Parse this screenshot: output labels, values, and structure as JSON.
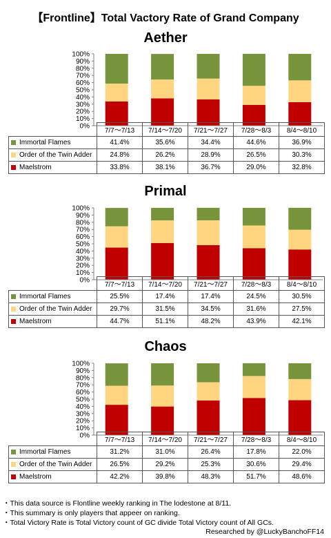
{
  "header": {
    "title": "【Frontline】Total Vactory Rate of Grand Company"
  },
  "legend_labels": [
    "Immortal Flames",
    "Order of the Twin Adder",
    "Maelstrom"
  ],
  "colors": {
    "immortal_flames": "#77933C",
    "twin_adder": "#FFD57F",
    "maelstrom": "#C00000",
    "axis": "#808080"
  },
  "chart_data": [
    {
      "type": "bar",
      "stacked": true,
      "title": "Aether",
      "categories": [
        "7/7～7/13",
        "7/14～7/20",
        "7/21～7/27",
        "7/28～8/3",
        "8/4～8/10"
      ],
      "ylim": [
        0,
        100
      ],
      "yticks": [
        "0%",
        "10%",
        "20%",
        "30%",
        "40%",
        "50%",
        "60%",
        "70%",
        "80%",
        "90%",
        "100%"
      ],
      "series": [
        {
          "name": "Immortal Flames",
          "values": [
            41.4,
            35.6,
            34.4,
            44.6,
            36.9
          ],
          "labels": [
            "41.4%",
            "35.6%",
            "34.4%",
            "44.6%",
            "36.9%"
          ]
        },
        {
          "name": "Order of the Twin Adder",
          "values": [
            24.8,
            26.2,
            28.9,
            26.5,
            30.3
          ],
          "labels": [
            "24.8%",
            "26.2%",
            "28.9%",
            "26.5%",
            "30.3%"
          ]
        },
        {
          "name": "Maelstrom",
          "values": [
            33.8,
            38.1,
            36.7,
            29.0,
            32.8
          ],
          "labels": [
            "33.8%",
            "38.1%",
            "36.7%",
            "29.0%",
            "32.8%"
          ]
        }
      ]
    },
    {
      "type": "bar",
      "stacked": true,
      "title": "Primal",
      "categories": [
        "7/7～7/13",
        "7/14～7/20",
        "7/21～7/27",
        "7/28～8/3",
        "8/4～8/10"
      ],
      "ylim": [
        0,
        100
      ],
      "yticks": [
        "0%",
        "10%",
        "20%",
        "30%",
        "40%",
        "50%",
        "60%",
        "70%",
        "80%",
        "90%",
        "100%"
      ],
      "series": [
        {
          "name": "Immortal Flames",
          "values": [
            25.5,
            17.4,
            17.4,
            24.5,
            30.5
          ],
          "labels": [
            "25.5%",
            "17.4%",
            "17.4%",
            "24.5%",
            "30.5%"
          ]
        },
        {
          "name": "Order of the Twin Adder",
          "values": [
            29.7,
            31.5,
            34.5,
            31.6,
            27.5
          ],
          "labels": [
            "29.7%",
            "31.5%",
            "34.5%",
            "31.6%",
            "27.5%"
          ]
        },
        {
          "name": "Maelstrom",
          "values": [
            44.7,
            51.1,
            48.2,
            43.9,
            42.1
          ],
          "labels": [
            "44.7%",
            "51.1%",
            "48.2%",
            "43.9%",
            "42.1%"
          ]
        }
      ]
    },
    {
      "type": "bar",
      "stacked": true,
      "title": "Chaos",
      "categories": [
        "7/7～7/13",
        "7/14～7/20",
        "7/21～7/27",
        "7/28～8/3",
        "8/4～8/10"
      ],
      "ylim": [
        0,
        100
      ],
      "yticks": [
        "0%",
        "10%",
        "20%",
        "30%",
        "40%",
        "50%",
        "60%",
        "70%",
        "80%",
        "90%",
        "100%"
      ],
      "series": [
        {
          "name": "Immortal Flames",
          "values": [
            31.2,
            31.0,
            26.4,
            17.8,
            22.0
          ],
          "labels": [
            "31.2%",
            "31.0%",
            "26.4%",
            "17.8%",
            "22.0%"
          ]
        },
        {
          "name": "Order of the Twin Adder",
          "values": [
            26.5,
            29.2,
            25.3,
            30.6,
            29.4
          ],
          "labels": [
            "26.5%",
            "29.2%",
            "25.3%",
            "30.6%",
            "29.4%"
          ]
        },
        {
          "name": "Maelstrom",
          "values": [
            42.2,
            39.8,
            48.3,
            51.7,
            48.6
          ],
          "labels": [
            "42.2%",
            "39.8%",
            "48.3%",
            "51.7%",
            "48.6%"
          ]
        }
      ]
    }
  ],
  "notes": [
    "・This data source is Flontline weekly ranking in The lodestone at 8/11.",
    "・This summary is only players that appeer on ranking.",
    "・Total Victory Rate is Total Victory count of GC divide Total Victory count of All GCs."
  ],
  "credit": "Researched by @LuckyBanchoFF14"
}
